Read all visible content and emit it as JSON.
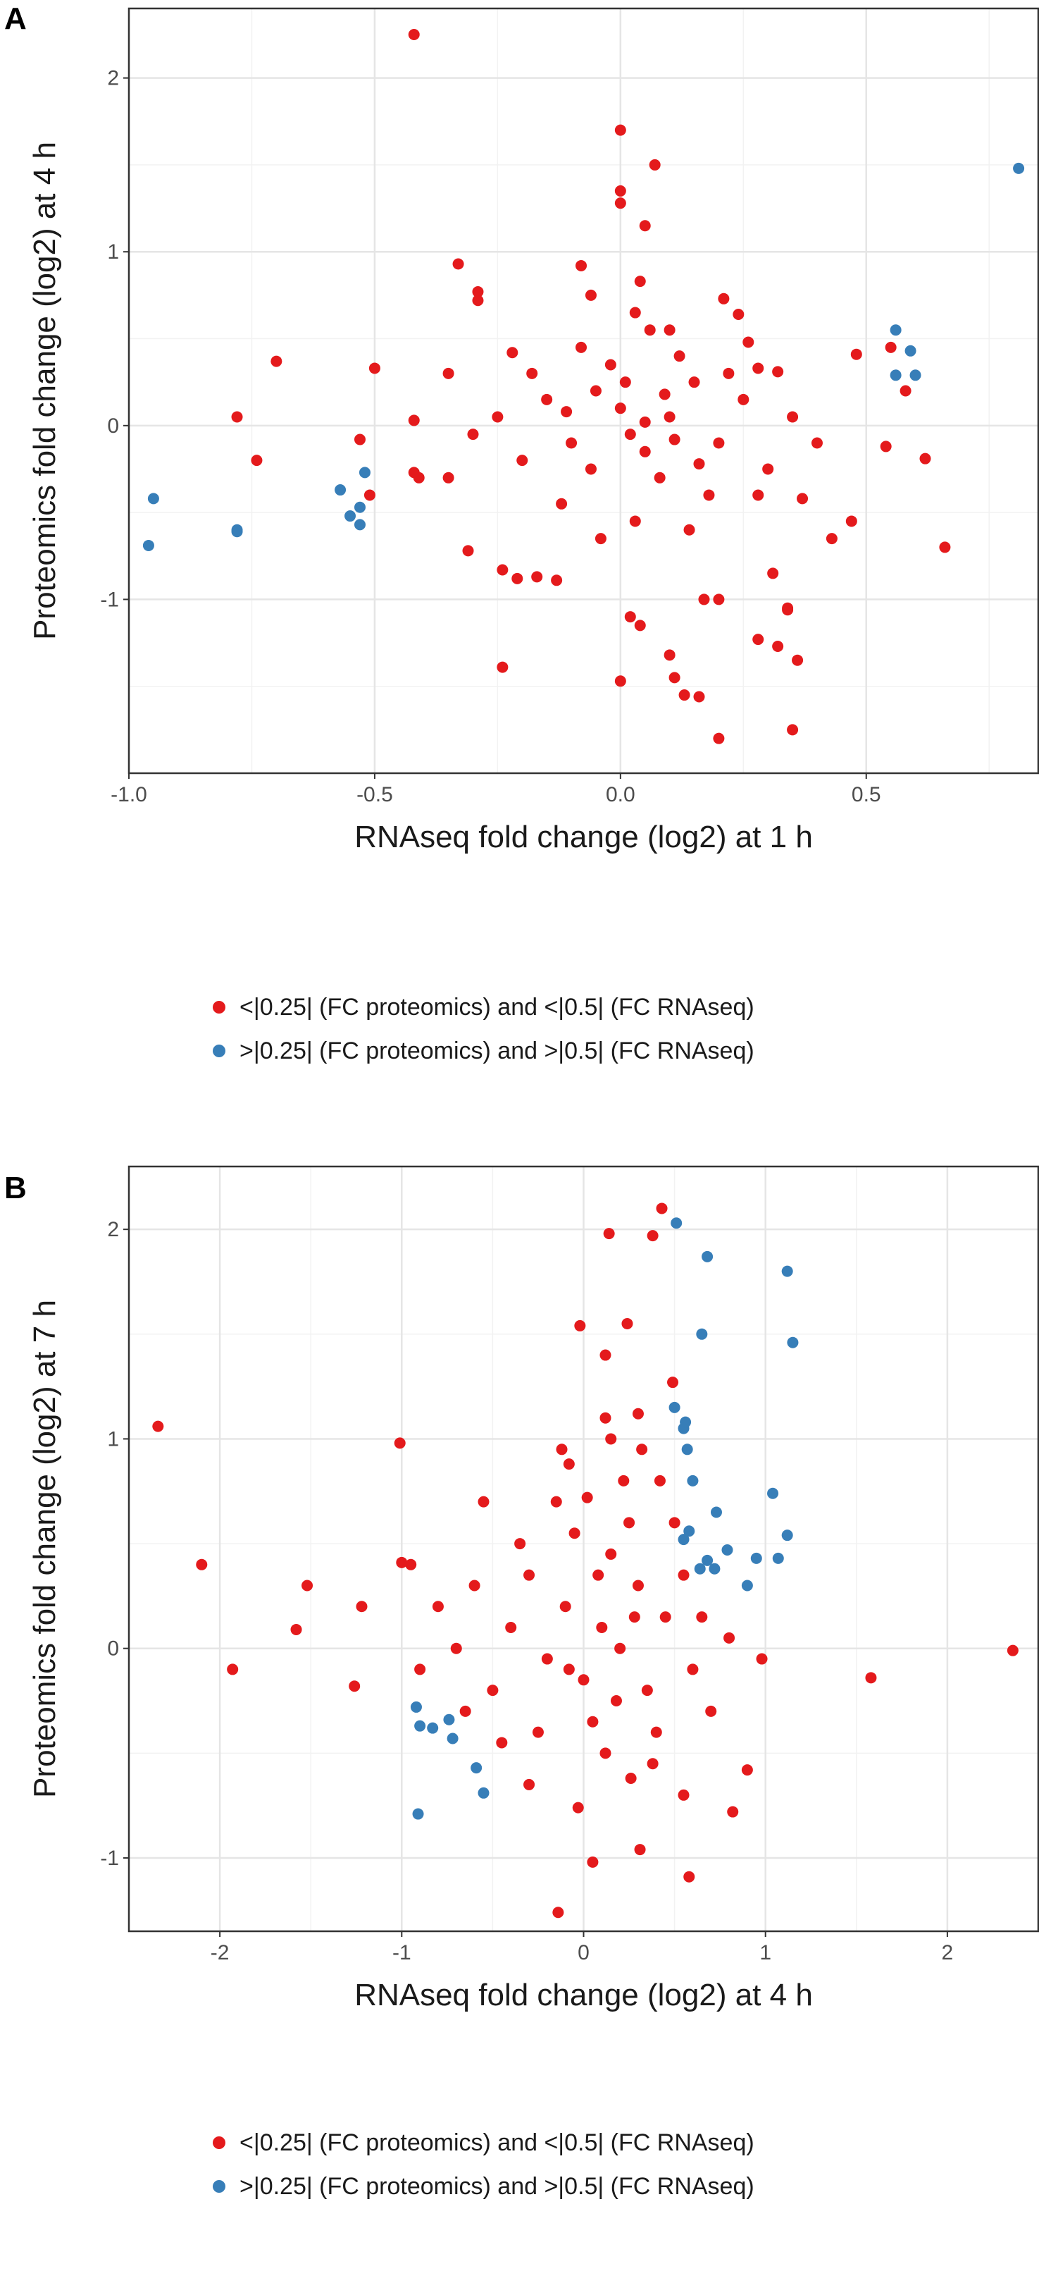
{
  "chart_data": [
    {
      "panel": "A",
      "type": "scatter",
      "xlabel": "RNAseq fold change (log2) at 1 h",
      "ylabel": "Proteomics fold change (log2) at 4 h",
      "xlim": [
        -1.0,
        0.85
      ],
      "ylim": [
        -2.0,
        2.4
      ],
      "xticks": [
        -1.0,
        -0.5,
        0.0,
        0.5
      ],
      "xtick_labels": [
        "-1.0",
        "-0.5",
        "0.0",
        "0.5"
      ],
      "yticks": [
        -1,
        0,
        1,
        2
      ],
      "ytick_labels": [
        "-1",
        "0",
        "1",
        "2"
      ],
      "grid": true,
      "legend_position": "bottom",
      "series": [
        {
          "name": "<|0.25| (FC proteomics) and <|0.5| (FC RNAseq)",
          "color": "#e41a1c",
          "points": [
            [
              -0.42,
              2.25
            ],
            [
              0.0,
              1.7
            ],
            [
              0.07,
              1.5
            ],
            [
              0.0,
              1.35
            ],
            [
              0.0,
              1.28
            ],
            [
              0.05,
              1.15
            ],
            [
              -0.33,
              0.93
            ],
            [
              -0.29,
              0.77
            ],
            [
              -0.29,
              0.72
            ],
            [
              -0.08,
              0.92
            ],
            [
              0.04,
              0.83
            ],
            [
              -0.06,
              0.75
            ],
            [
              0.21,
              0.73
            ],
            [
              0.03,
              0.65
            ],
            [
              0.24,
              0.64
            ],
            [
              0.1,
              0.55
            ],
            [
              0.55,
              0.45
            ],
            [
              0.48,
              0.41
            ],
            [
              -0.7,
              0.37
            ],
            [
              -0.5,
              0.33
            ],
            [
              0.28,
              0.33
            ],
            [
              0.32,
              0.31
            ],
            [
              -0.35,
              0.3
            ],
            [
              0.58,
              0.2
            ],
            [
              -0.78,
              0.05
            ],
            [
              -0.42,
              0.03
            ],
            [
              -0.53,
              -0.08
            ],
            [
              0.54,
              -0.12
            ],
            [
              0.62,
              -0.19
            ],
            [
              -0.74,
              -0.2
            ],
            [
              -0.42,
              -0.27
            ],
            [
              -0.41,
              -0.3
            ],
            [
              -0.51,
              -0.4
            ],
            [
              0.47,
              -0.55
            ],
            [
              0.43,
              -0.65
            ],
            [
              0.66,
              -0.7
            ],
            [
              -0.31,
              -0.72
            ],
            [
              -0.24,
              -0.83
            ],
            [
              0.31,
              -0.85
            ],
            [
              -0.17,
              -0.87
            ],
            [
              -0.21,
              -0.88
            ],
            [
              -0.13,
              -0.89
            ],
            [
              0.2,
              -1.0
            ],
            [
              0.17,
              -1.0
            ],
            [
              0.34,
              -1.05
            ],
            [
              0.34,
              -1.06
            ],
            [
              0.02,
              -1.1
            ],
            [
              0.04,
              -1.15
            ],
            [
              0.28,
              -1.23
            ],
            [
              0.32,
              -1.27
            ],
            [
              0.1,
              -1.32
            ],
            [
              0.36,
              -1.35
            ],
            [
              -0.24,
              -1.39
            ],
            [
              0.11,
              -1.45
            ],
            [
              0.0,
              -1.47
            ],
            [
              0.13,
              -1.55
            ],
            [
              0.16,
              -1.56
            ],
            [
              0.35,
              -1.75
            ],
            [
              0.2,
              -1.8
            ],
            [
              0.0,
              0.1
            ],
            [
              0.02,
              -0.05
            ],
            [
              -0.05,
              0.2
            ],
            [
              0.05,
              -0.15
            ],
            [
              0.1,
              0.05
            ],
            [
              -0.1,
              -0.1
            ],
            [
              0.15,
              0.25
            ],
            [
              -0.15,
              0.15
            ],
            [
              0.08,
              -0.3
            ],
            [
              -0.02,
              0.35
            ],
            [
              0.2,
              -0.1
            ],
            [
              -0.2,
              -0.2
            ],
            [
              0.12,
              0.4
            ],
            [
              -0.08,
              0.45
            ],
            [
              0.25,
              0.15
            ],
            [
              -0.25,
              0.05
            ],
            [
              0.18,
              -0.4
            ],
            [
              -0.12,
              -0.45
            ],
            [
              0.3,
              -0.25
            ],
            [
              -0.3,
              -0.05
            ],
            [
              0.06,
              0.55
            ],
            [
              0.22,
              0.3
            ],
            [
              -0.18,
              0.3
            ],
            [
              0.28,
              -0.4
            ],
            [
              0.03,
              -0.55
            ],
            [
              -0.04,
              -0.65
            ],
            [
              0.14,
              -0.6
            ],
            [
              0.35,
              0.05
            ],
            [
              -0.35,
              -0.3
            ],
            [
              0.4,
              -0.1
            ],
            [
              0.01,
              0.25
            ],
            [
              -0.06,
              -0.25
            ],
            [
              0.09,
              0.18
            ],
            [
              0.16,
              -0.22
            ],
            [
              -0.11,
              0.08
            ],
            [
              0.26,
              0.48
            ],
            [
              0.37,
              -0.42
            ],
            [
              -0.22,
              0.42
            ],
            [
              0.05,
              0.02
            ],
            [
              0.11,
              -0.08
            ]
          ]
        },
        {
          "name": ">|0.25| (FC proteomics) and >|0.5| (FC RNAseq)",
          "color": "#377eb8",
          "points": [
            [
              0.81,
              1.48
            ],
            [
              0.56,
              0.55
            ],
            [
              0.59,
              0.43
            ],
            [
              0.56,
              0.29
            ],
            [
              0.6,
              0.29
            ],
            [
              -0.95,
              -0.42
            ],
            [
              -0.96,
              -0.69
            ],
            [
              -0.78,
              -0.6
            ],
            [
              -0.78,
              -0.61
            ],
            [
              -0.57,
              -0.37
            ],
            [
              -0.52,
              -0.27
            ],
            [
              -0.55,
              -0.52
            ],
            [
              -0.53,
              -0.47
            ],
            [
              -0.53,
              -0.57
            ]
          ]
        }
      ]
    },
    {
      "panel": "B",
      "type": "scatter",
      "xlabel": "RNAseq fold change (log2) at 4 h",
      "ylabel": "Proteomics fold change (log2) at 7 h",
      "xlim": [
        -2.5,
        2.5
      ],
      "ylim": [
        -1.35,
        2.3
      ],
      "xticks": [
        -2,
        -1,
        0,
        1,
        2
      ],
      "xtick_labels": [
        "-2",
        "-1",
        "0",
        "1",
        "2"
      ],
      "yticks": [
        -1,
        0,
        1,
        2
      ],
      "ytick_labels": [
        "-1",
        "0",
        "1",
        "2"
      ],
      "grid": true,
      "legend_position": "bottom",
      "series": [
        {
          "name": "<|0.25| (FC proteomics) and <|0.5| (FC RNAseq)",
          "color": "#e41a1c",
          "points": [
            [
              0.43,
              2.1
            ],
            [
              0.14,
              1.98
            ],
            [
              0.38,
              1.97
            ],
            [
              0.24,
              1.55
            ],
            [
              -0.02,
              1.54
            ],
            [
              0.12,
              1.4
            ],
            [
              0.49,
              1.27
            ],
            [
              0.3,
              1.12
            ],
            [
              0.12,
              1.1
            ],
            [
              -2.34,
              1.06
            ],
            [
              -1.01,
              0.98
            ],
            [
              -0.08,
              0.88
            ],
            [
              -2.1,
              0.4
            ],
            [
              -1.52,
              0.3
            ],
            [
              -1.58,
              0.09
            ],
            [
              -1.93,
              -0.1
            ],
            [
              -1.26,
              -0.18
            ],
            [
              -1.22,
              0.2
            ],
            [
              -0.95,
              0.4
            ],
            [
              -1.0,
              0.41
            ],
            [
              2.36,
              -0.01
            ],
            [
              1.58,
              -0.14
            ],
            [
              0.98,
              -0.05
            ],
            [
              0.9,
              -0.58
            ],
            [
              0.82,
              -0.78
            ],
            [
              0.58,
              -1.09
            ],
            [
              0.05,
              -1.02
            ],
            [
              -0.14,
              -1.26
            ],
            [
              0.31,
              -0.96
            ],
            [
              -0.3,
              -0.65
            ],
            [
              -0.03,
              -0.76
            ],
            [
              0.26,
              -0.62
            ],
            [
              0.1,
              0.1
            ],
            [
              0.2,
              0.0
            ],
            [
              -0.1,
              0.2
            ],
            [
              0.0,
              -0.15
            ],
            [
              0.3,
              0.3
            ],
            [
              -0.2,
              -0.05
            ],
            [
              0.15,
              0.45
            ],
            [
              0.35,
              -0.2
            ],
            [
              -0.3,
              0.35
            ],
            [
              0.25,
              0.6
            ],
            [
              -0.4,
              0.1
            ],
            [
              0.45,
              0.15
            ],
            [
              0.05,
              -0.35
            ],
            [
              -0.05,
              0.55
            ],
            [
              0.4,
              -0.4
            ],
            [
              -0.5,
              -0.2
            ],
            [
              0.22,
              0.8
            ],
            [
              -0.15,
              0.7
            ],
            [
              0.55,
              0.35
            ],
            [
              -0.6,
              0.3
            ],
            [
              0.12,
              -0.5
            ],
            [
              0.32,
              0.95
            ],
            [
              -0.25,
              -0.4
            ],
            [
              0.6,
              -0.1
            ],
            [
              -0.7,
              0.0
            ],
            [
              0.08,
              0.35
            ],
            [
              0.18,
              -0.25
            ],
            [
              -0.08,
              -0.1
            ],
            [
              0.28,
              0.15
            ],
            [
              -0.35,
              0.5
            ],
            [
              0.5,
              0.6
            ],
            [
              0.02,
              0.72
            ],
            [
              0.38,
              -0.55
            ],
            [
              -0.45,
              -0.45
            ],
            [
              0.65,
              0.15
            ],
            [
              -0.8,
              0.2
            ],
            [
              0.7,
              -0.3
            ],
            [
              -0.65,
              -0.3
            ],
            [
              0.15,
              1.0
            ],
            [
              0.42,
              0.8
            ],
            [
              -0.9,
              -0.1
            ],
            [
              0.8,
              0.05
            ],
            [
              -0.12,
              0.95
            ],
            [
              0.55,
              -0.7
            ],
            [
              -0.55,
              0.7
            ]
          ]
        },
        {
          "name": ">|0.25| (FC proteomics) and >|0.5| (FC RNAseq)",
          "color": "#377eb8",
          "points": [
            [
              0.51,
              2.03
            ],
            [
              0.68,
              1.87
            ],
            [
              1.12,
              1.8
            ],
            [
              0.65,
              1.5
            ],
            [
              1.15,
              1.46
            ],
            [
              0.5,
              1.15
            ],
            [
              0.55,
              1.05
            ],
            [
              0.56,
              1.08
            ],
            [
              0.57,
              0.95
            ],
            [
              0.6,
              0.8
            ],
            [
              1.04,
              0.74
            ],
            [
              0.73,
              0.65
            ],
            [
              0.79,
              0.47
            ],
            [
              1.12,
              0.54
            ],
            [
              0.95,
              0.43
            ],
            [
              1.07,
              0.43
            ],
            [
              0.9,
              0.3
            ],
            [
              0.64,
              0.38
            ],
            [
              0.68,
              0.42
            ],
            [
              0.72,
              0.38
            ],
            [
              0.55,
              0.52
            ],
            [
              0.58,
              0.56
            ],
            [
              -0.92,
              -0.28
            ],
            [
              -0.9,
              -0.37
            ],
            [
              -0.83,
              -0.38
            ],
            [
              -0.74,
              -0.34
            ],
            [
              -0.72,
              -0.43
            ],
            [
              -0.59,
              -0.57
            ],
            [
              -0.55,
              -0.69
            ],
            [
              -0.91,
              -0.79
            ]
          ]
        }
      ]
    }
  ],
  "panels": {
    "a": {
      "letter": "A"
    },
    "b": {
      "letter": "B"
    }
  }
}
